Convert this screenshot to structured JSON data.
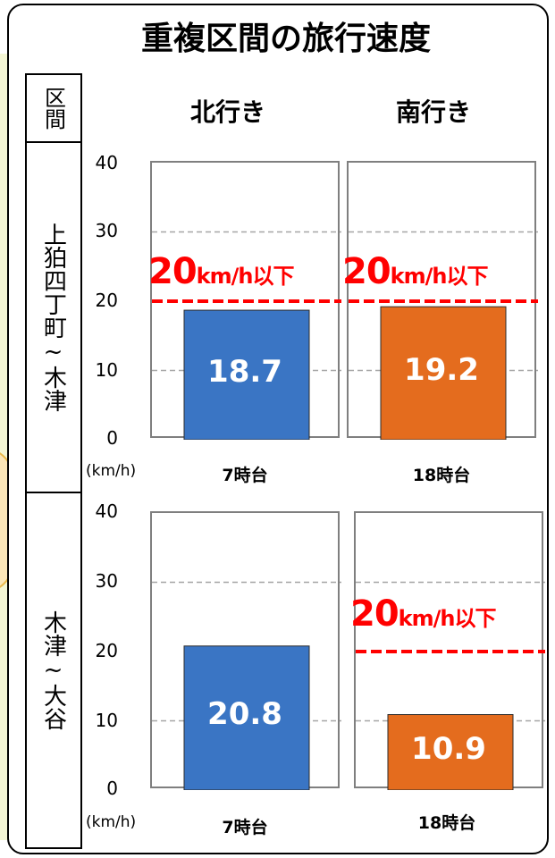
{
  "title": "重複区間の旅行速度",
  "section_header": "区間",
  "directions": [
    "北行き",
    "南行き"
  ],
  "y_unit": "(km/h)",
  "y_ticks": [
    "0",
    "10",
    "20",
    "30",
    "40"
  ],
  "threshold": {
    "value_text": "20",
    "unit_text": "km/h以下",
    "color": "#ff0000"
  },
  "colors": {
    "north": "#3a75c4",
    "south": "#e46c1e"
  },
  "chart_data": [
    {
      "type": "bar",
      "section": "上狛四丁町~木津",
      "categories": [
        "7時台",
        "18時台"
      ],
      "series": [
        {
          "values": [
            18.7,
            19.2
          ]
        }
      ],
      "ylim": [
        0,
        40
      ],
      "gridlines": [
        10,
        30
      ],
      "threshold": 20,
      "threshold_shown": [
        true,
        true
      ]
    },
    {
      "type": "bar",
      "section": "木津~大谷",
      "categories": [
        "7時台",
        "18時台"
      ],
      "series": [
        {
          "values": [
            20.8,
            10.9
          ]
        }
      ],
      "ylim": [
        0,
        40
      ],
      "gridlines": [
        10,
        30
      ],
      "threshold": 20,
      "threshold_shown": [
        false,
        true
      ]
    }
  ]
}
